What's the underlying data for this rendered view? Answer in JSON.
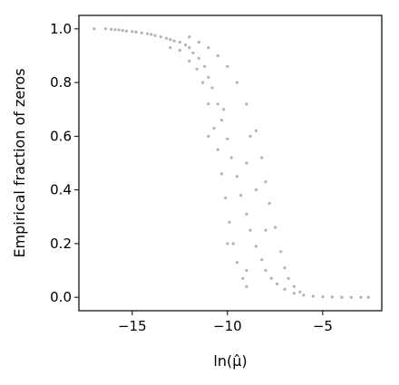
{
  "chart_data": {
    "type": "scatter",
    "title": "",
    "xlabel": "ln(μ̂)",
    "ylabel": "Empirical fraction of zeros",
    "xlim": [
      -17.8,
      -1.9
    ],
    "ylim": [
      -0.05,
      1.05
    ],
    "xticks": [
      {
        "value": -15,
        "label": "−15"
      },
      {
        "value": -10,
        "label": "−10"
      },
      {
        "value": -5,
        "label": "−5"
      }
    ],
    "yticks": [
      {
        "value": 0.0,
        "label": "0.0"
      },
      {
        "value": 0.2,
        "label": "0.2"
      },
      {
        "value": 0.4,
        "label": "0.4"
      },
      {
        "value": 0.6,
        "label": "0.6"
      },
      {
        "value": 0.8,
        "label": "0.8"
      },
      {
        "value": 1.0,
        "label": "1.0"
      }
    ],
    "grid": false,
    "legend": "none",
    "point_color": "#000000",
    "point_alpha": 0.3,
    "series": [
      {
        "points": [
          [
            -17.0,
            1.0
          ],
          [
            -16.4,
            1.0
          ],
          [
            -16.1,
            0.998
          ],
          [
            -15.9,
            0.997
          ],
          [
            -15.7,
            0.996
          ],
          [
            -15.5,
            0.994
          ],
          [
            -15.3,
            0.992
          ],
          [
            -15.0,
            0.99
          ],
          [
            -14.8,
            0.988
          ],
          [
            -14.5,
            0.985
          ],
          [
            -14.2,
            0.982
          ],
          [
            -14.0,
            0.979
          ],
          [
            -13.8,
            0.975
          ],
          [
            -13.5,
            0.97
          ],
          [
            -13.2,
            0.965
          ],
          [
            -13.0,
            0.96
          ],
          [
            -12.8,
            0.955
          ],
          [
            -12.5,
            0.95
          ],
          [
            -12.2,
            0.94
          ],
          [
            -12.0,
            0.93
          ],
          [
            -11.8,
            0.91
          ],
          [
            -11.5,
            0.89
          ],
          [
            -11.2,
            0.86
          ],
          [
            -11.0,
            0.82
          ],
          [
            -10.8,
            0.78
          ],
          [
            -10.5,
            0.72
          ],
          [
            -10.3,
            0.66
          ],
          [
            -10.0,
            0.59
          ],
          [
            -9.8,
            0.52
          ],
          [
            -9.5,
            0.45
          ],
          [
            -9.3,
            0.38
          ],
          [
            -9.0,
            0.31
          ],
          [
            -8.8,
            0.25
          ],
          [
            -8.5,
            0.19
          ],
          [
            -8.2,
            0.14
          ],
          [
            -8.0,
            0.1
          ],
          [
            -7.7,
            0.07
          ],
          [
            -7.4,
            0.05
          ],
          [
            -7.0,
            0.03
          ],
          [
            -6.5,
            0.015
          ],
          [
            -6.0,
            0.008
          ],
          [
            -5.5,
            0.004
          ],
          [
            -5.0,
            0.002
          ],
          [
            -4.5,
            0.001
          ],
          [
            -4.0,
            0.0
          ],
          [
            -3.5,
            0.0
          ],
          [
            -3.0,
            0.0
          ],
          [
            -2.6,
            0.0
          ],
          [
            -13.0,
            0.93
          ],
          [
            -12.5,
            0.92
          ],
          [
            -12.0,
            0.88
          ],
          [
            -11.6,
            0.85
          ],
          [
            -11.3,
            0.8
          ],
          [
            -11.0,
            0.72
          ],
          [
            -10.7,
            0.63
          ],
          [
            -10.5,
            0.55
          ],
          [
            -10.3,
            0.46
          ],
          [
            -10.1,
            0.37
          ],
          [
            -9.9,
            0.28
          ],
          [
            -9.7,
            0.2
          ],
          [
            -9.5,
            0.13
          ],
          [
            -9.2,
            0.07
          ],
          [
            -9.0,
            0.04
          ],
          [
            -12.0,
            0.97
          ],
          [
            -11.5,
            0.95
          ],
          [
            -11.0,
            0.93
          ],
          [
            -10.5,
            0.9
          ],
          [
            -10.0,
            0.86
          ],
          [
            -9.5,
            0.8
          ],
          [
            -9.0,
            0.72
          ],
          [
            -8.5,
            0.62
          ],
          [
            -8.2,
            0.52
          ],
          [
            -8.0,
            0.43
          ],
          [
            -7.8,
            0.35
          ],
          [
            -7.5,
            0.26
          ],
          [
            -7.2,
            0.17
          ],
          [
            -7.0,
            0.11
          ],
          [
            -6.8,
            0.07
          ],
          [
            -6.5,
            0.04
          ],
          [
            -6.2,
            0.02
          ],
          [
            -10.0,
            0.2
          ],
          [
            -9.0,
            0.5
          ],
          [
            -8.0,
            0.25
          ],
          [
            -9.0,
            0.1
          ],
          [
            -10.2,
            0.7
          ],
          [
            -8.5,
            0.4
          ],
          [
            -11.0,
            0.6
          ],
          [
            -8.8,
            0.6
          ]
        ]
      }
    ]
  }
}
